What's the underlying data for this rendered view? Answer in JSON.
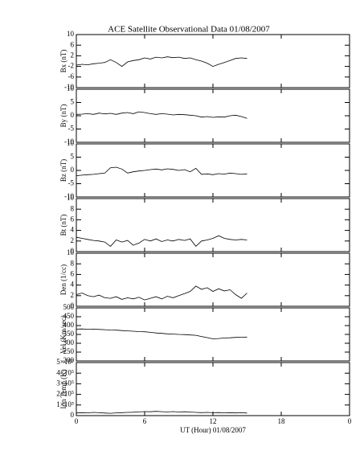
{
  "title": "ACE Satellite Observational Data   01/08/2007",
  "chart_data": [
    {
      "type": "line",
      "y_label": "Bx (nT)",
      "ylim": [
        -10,
        10
      ],
      "yticks": [
        -10,
        -6,
        -2,
        2,
        6,
        10
      ],
      "color": "#000000",
      "x": [
        0,
        0.5,
        1,
        1.5,
        2,
        2.5,
        3,
        3.5,
        4,
        4.5,
        5,
        5.5,
        6,
        6.5,
        7,
        7.5,
        8,
        8.5,
        9,
        9.5,
        10,
        10.5,
        11,
        11.5,
        12,
        12.5,
        13,
        13.5,
        14,
        14.5,
        15
      ],
      "values": [
        -1.5,
        -1.2,
        -1.4,
        -1,
        -0.8,
        -0.5,
        0.5,
        -0.5,
        -2,
        -0.3,
        0.2,
        0.5,
        1.2,
        0.8,
        1.5,
        1.2,
        1.6,
        1.3,
        1.5,
        1.0,
        1.2,
        0.5,
        0,
        -0.8,
        -2,
        -1.2,
        -0.5,
        0.2,
        1,
        1.2,
        1
      ]
    },
    {
      "type": "line",
      "y_label": "By (nT)",
      "ylim": [
        -10,
        10
      ],
      "yticks": [
        -10,
        -5,
        0,
        5,
        10
      ],
      "color": "#000000",
      "x": [
        0,
        0.5,
        1,
        1.5,
        2,
        2.5,
        3,
        3.5,
        4,
        4.5,
        5,
        5.5,
        6,
        6.5,
        7,
        7.5,
        8,
        8.5,
        9,
        9.5,
        10,
        10.5,
        11,
        11.5,
        12,
        12.5,
        13,
        13.5,
        14,
        14.5,
        15
      ],
      "values": [
        0.5,
        0.6,
        0.8,
        0.5,
        1,
        0.7,
        0.9,
        0.5,
        1,
        1.2,
        0.8,
        1.5,
        1.2,
        0.8,
        0.5,
        0.8,
        0.6,
        0.3,
        0.5,
        0.4,
        0.2,
        0,
        -0.5,
        -0.3,
        -0.6,
        -0.4,
        -0.5,
        0,
        0.2,
        -0.3,
        -1
      ]
    },
    {
      "type": "line",
      "y_label": "Bz (nT)",
      "ylim": [
        -10,
        10
      ],
      "yticks": [
        -10,
        -5,
        0,
        5,
        10
      ],
      "color": "#000000",
      "x": [
        0,
        0.5,
        1,
        1.5,
        2,
        2.5,
        3,
        3.5,
        4,
        4.5,
        5,
        5.5,
        6,
        6.5,
        7,
        7.5,
        8,
        8.5,
        9,
        9.5,
        10,
        10.5,
        11,
        11.5,
        12,
        12.5,
        13,
        13.5,
        14,
        14.5,
        15
      ],
      "values": [
        -2,
        -1.8,
        -1.6,
        -1.5,
        -1.2,
        -1,
        1,
        1.2,
        0.5,
        -1,
        -0.5,
        -0.2,
        0,
        0.3,
        0.5,
        0.2,
        0.6,
        0.4,
        0,
        0.3,
        -0.5,
        0.8,
        -1.5,
        -1.3,
        -1.6,
        -1.2,
        -1.4,
        -1,
        -1.2,
        -1.5,
        -1.3
      ]
    },
    {
      "type": "line",
      "y_label": "Bt (nT)",
      "ylim": [
        0,
        10
      ],
      "yticks": [
        0,
        2,
        4,
        6,
        8,
        10
      ],
      "color": "#000000",
      "x": [
        0,
        0.5,
        1,
        1.5,
        2,
        2.5,
        3,
        3.5,
        4,
        4.5,
        5,
        5.5,
        6,
        6.5,
        7,
        7.5,
        8,
        8.5,
        9,
        9.5,
        10,
        10.5,
        11,
        11.5,
        12,
        12.5,
        13,
        13.5,
        14,
        14.5,
        15
      ],
      "values": [
        2.7,
        2.5,
        2.3,
        2.1,
        2,
        1.8,
        1,
        2.2,
        1.8,
        2.1,
        1.2,
        1.6,
        2.3,
        2,
        2.4,
        1.9,
        2.2,
        2,
        2.3,
        2.1,
        2.4,
        1,
        2,
        2.2,
        2.5,
        3,
        2.5,
        2.3,
        2.2,
        2.3,
        2.2
      ]
    },
    {
      "type": "line",
      "y_label": "Den (1/cc)",
      "ylim": [
        0,
        10
      ],
      "yticks": [
        0,
        2,
        4,
        6,
        8,
        10
      ],
      "color": "#000000",
      "x": [
        0,
        0.5,
        1,
        1.5,
        2,
        2.5,
        3,
        3.5,
        4,
        4.5,
        5,
        5.5,
        6,
        6.5,
        7,
        7.5,
        8,
        8.5,
        9,
        9.5,
        10,
        10.5,
        11,
        11.5,
        12,
        12.5,
        13,
        13.5,
        14,
        14.5,
        15
      ],
      "values": [
        2.2,
        2.5,
        2,
        1.8,
        2.1,
        1.6,
        1.5,
        1.8,
        1.3,
        1.6,
        1.4,
        1.7,
        1.2,
        1.5,
        1.8,
        1.4,
        1.9,
        1.6,
        2,
        2.4,
        2.8,
        3.8,
        3.2,
        3.5,
        2.8,
        3.3,
        2.9,
        3.1,
        2.2,
        1.5,
        2.5
      ]
    },
    {
      "type": "line",
      "y_label": "Vel (Km/sec)",
      "ylim": [
        200,
        500
      ],
      "yticks": [
        200,
        250,
        300,
        350,
        400,
        450,
        500
      ],
      "color": "#000000",
      "x": [
        0,
        0.5,
        1,
        1.5,
        2,
        2.5,
        3,
        3.5,
        4,
        4.5,
        5,
        5.5,
        6,
        6.5,
        7,
        7.5,
        8,
        8.5,
        9,
        9.5,
        10,
        10.5,
        11,
        11.5,
        12,
        12.5,
        13,
        13.5,
        14,
        14.5,
        15
      ],
      "values": [
        380,
        381,
        379,
        380,
        378,
        377,
        375,
        374,
        372,
        370,
        368,
        366,
        365,
        362,
        358,
        356,
        353,
        352,
        350,
        349,
        347,
        345,
        338,
        332,
        325,
        327,
        330,
        331,
        333,
        334,
        335
      ]
    },
    {
      "type": "line",
      "y_label": "Ion Temp (K)",
      "ylim": [
        0,
        500000
      ],
      "yticks": [
        0,
        {
          "value": 100000,
          "label": "1×10⁵"
        },
        {
          "value": 200000,
          "label": "2×10⁵"
        },
        {
          "value": 300000,
          "label": "3×10⁵"
        },
        {
          "value": 400000,
          "label": "4×10⁵"
        },
        {
          "value": 500000,
          "label": "5×10⁵"
        }
      ],
      "color": "#000000",
      "x": [
        0,
        0.5,
        1,
        1.5,
        2,
        2.5,
        3,
        3.5,
        4,
        4.5,
        5,
        5.5,
        6,
        6.5,
        7,
        7.5,
        8,
        8.5,
        9,
        9.5,
        10,
        10.5,
        11,
        11.5,
        12,
        12.5,
        13,
        13.5,
        14,
        14.5,
        15
      ],
      "values": [
        25000,
        28000,
        26000,
        30000,
        27000,
        24000,
        22000,
        26000,
        28000,
        30000,
        32000,
        35000,
        38000,
        36000,
        40000,
        37000,
        35000,
        38000,
        34000,
        36000,
        33000,
        30000,
        28000,
        30000,
        27000,
        29000,
        26000,
        28000,
        25000,
        27000,
        24000
      ],
      "xlim": [
        0,
        24
      ],
      "xticks": [
        0,
        6,
        12,
        18,
        {
          "value": 24,
          "label": "0"
        }
      ],
      "x_label": "UT (Hour)  01/08/2007"
    }
  ]
}
